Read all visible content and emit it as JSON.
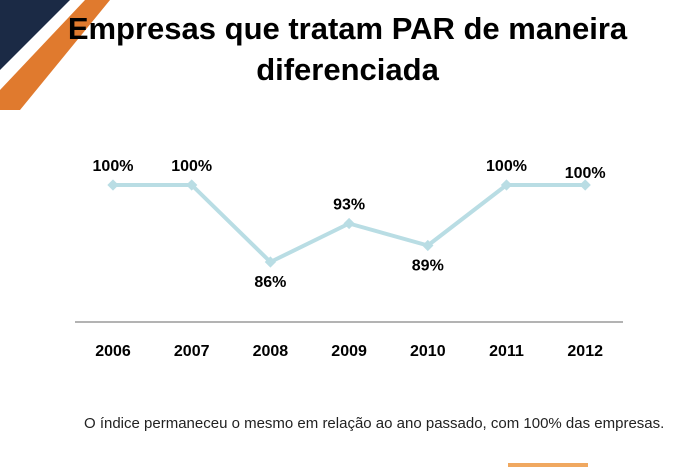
{
  "title": {
    "line1": "Empresas que tratam PAR de maneira",
    "line2": "diferenciada"
  },
  "chart_data": {
    "type": "line",
    "title": "Empresas que tratam PAR de maneira diferenciada",
    "categories": [
      "2006",
      "2007",
      "2008",
      "2009",
      "2010",
      "2011",
      "2012"
    ],
    "series": [
      {
        "values": [
          100,
          100,
          86,
          93,
          89,
          100,
          100
        ]
      }
    ],
    "data_labels": [
      "100%",
      "100%",
      "86%",
      "93%",
      "89%",
      "100%",
      "100%"
    ],
    "ylim": [
      80,
      105
    ],
    "grid": false,
    "legend": "none",
    "colors": {
      "line": "#b9dde4",
      "marker": "#b9dde4",
      "axis": "#9a9a9a"
    }
  },
  "footnote": "O índice permaneceu o mesmo em relação ao ano passado, com 100% das empresas.",
  "colors": {
    "corner_orange": "#e07a2e",
    "corner_navy": "#1b2a45"
  }
}
